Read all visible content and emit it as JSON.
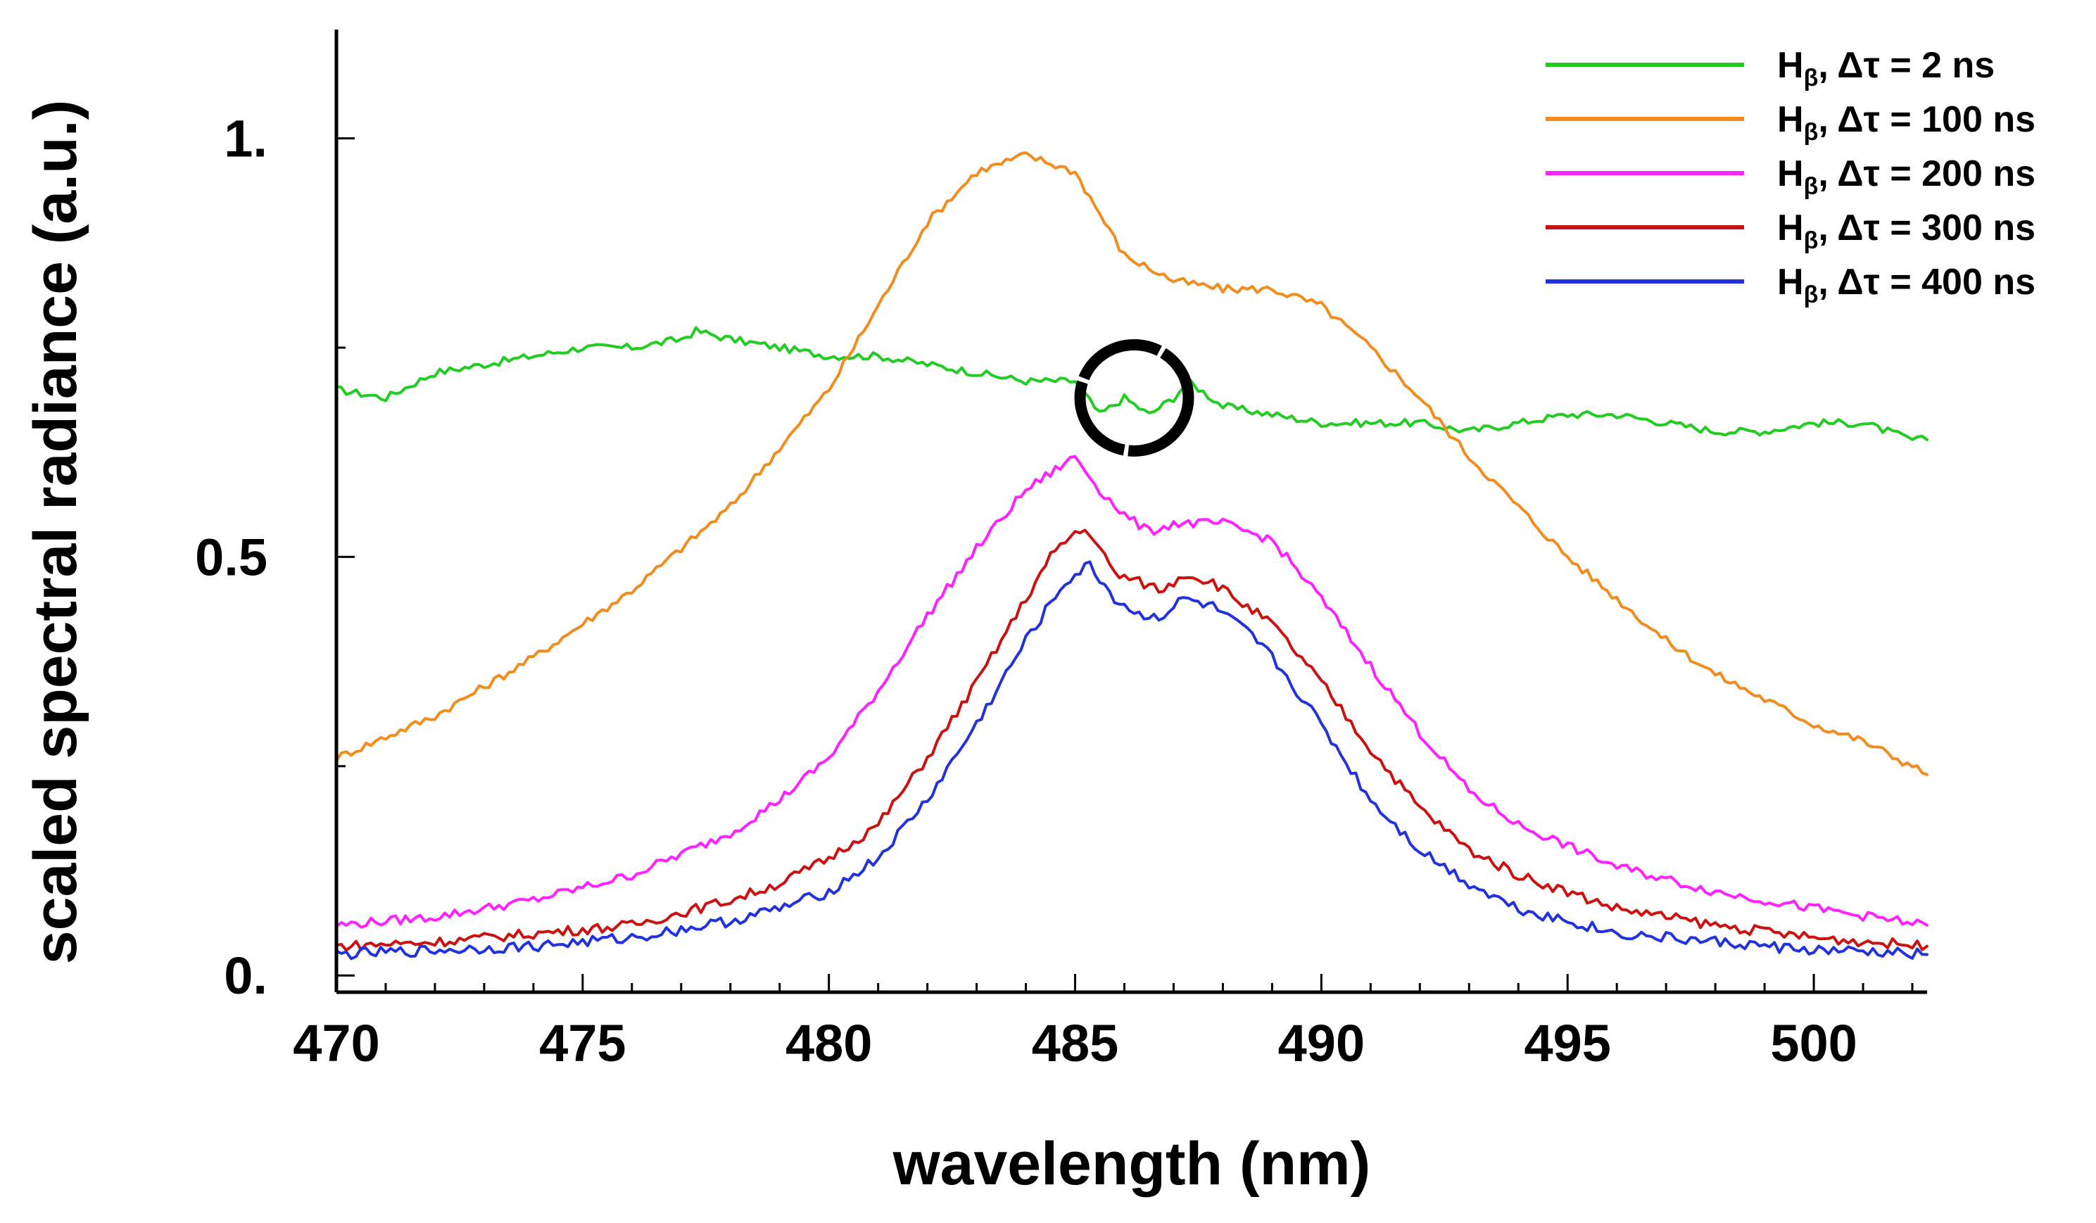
{
  "chart_data": {
    "type": "line",
    "title": "",
    "xlabel": "wavelength (nm)",
    "ylabel": "scaled spectral radiance (a.u.)",
    "xlim": [
      470,
      502.3
    ],
    "ylim": [
      -0.02,
      1.13
    ],
    "grid": false,
    "legend_position": "top-right",
    "x_ticks": [
      470,
      475,
      480,
      485,
      490,
      495,
      500
    ],
    "x_tick_labels": [
      "470",
      "475",
      "480",
      "485",
      "490",
      "495",
      "500"
    ],
    "x_minor_ticks": [
      471,
      472,
      473,
      474,
      476,
      477,
      478,
      479,
      481,
      482,
      483,
      484,
      486,
      487,
      488,
      489,
      491,
      492,
      493,
      494,
      496,
      497,
      498,
      499,
      501,
      502
    ],
    "y_ticks": [
      0,
      0.5,
      1.0
    ],
    "y_tick_labels": [
      "0.",
      "0.5",
      "1."
    ],
    "y_minor_ticks": [
      0.25,
      0.75
    ],
    "series": [
      {
        "name": "Hβ, Δτ = 2 ns",
        "legend_main": "H",
        "legend_sub": "β",
        "legend_rest": ", Δτ = 2 ns",
        "color": "#22cc22",
        "x": [
          470,
          471,
          472,
          473,
          474,
          475,
          476,
          477,
          477.3,
          478,
          479,
          480,
          481,
          482,
          483,
          484,
          485,
          485.5,
          486,
          486.5,
          487,
          487.3,
          488,
          489,
          490,
          491,
          492,
          493,
          494,
          495,
          496,
          497,
          498,
          499,
          500,
          501,
          502,
          502.3
        ],
        "values": [
          0.7,
          0.69,
          0.72,
          0.73,
          0.74,
          0.75,
          0.75,
          0.76,
          0.77,
          0.76,
          0.75,
          0.74,
          0.74,
          0.73,
          0.72,
          0.71,
          0.71,
          0.67,
          0.69,
          0.67,
          0.69,
          0.71,
          0.68,
          0.67,
          0.66,
          0.66,
          0.66,
          0.65,
          0.66,
          0.67,
          0.67,
          0.66,
          0.65,
          0.65,
          0.66,
          0.66,
          0.64,
          0.64
        ]
      },
      {
        "name": "Hβ, Δτ = 100 ns",
        "legend_main": "H",
        "legend_sub": "β",
        "legend_rest": ", Δτ = 100 ns",
        "color": "#f28c1e",
        "x": [
          470,
          472,
          474,
          476,
          478,
          480,
          481,
          482,
          483,
          484,
          484.5,
          485,
          485.5,
          486,
          487,
          488,
          489,
          490,
          491,
          492,
          493,
          494,
          495,
          496,
          497,
          498,
          499,
          500,
          501,
          502,
          502.3
        ],
        "values": [
          0.26,
          0.31,
          0.38,
          0.46,
          0.56,
          0.7,
          0.8,
          0.9,
          0.96,
          0.98,
          0.97,
          0.96,
          0.91,
          0.86,
          0.83,
          0.82,
          0.82,
          0.8,
          0.75,
          0.69,
          0.62,
          0.56,
          0.5,
          0.45,
          0.4,
          0.36,
          0.33,
          0.3,
          0.28,
          0.25,
          0.24
        ]
      },
      {
        "name": "Hβ, Δτ = 200 ns",
        "legend_main": "H",
        "legend_sub": "β",
        "legend_rest": ", Δτ = 200 ns",
        "color": "#ff22ff",
        "x": [
          470,
          472,
          474,
          476,
          478,
          479,
          480,
          481,
          482,
          483,
          484,
          485,
          485.5,
          486,
          486.5,
          487,
          487.5,
          488,
          488.5,
          489,
          490,
          491,
          492,
          493,
          494,
          496,
          498,
          500,
          502.3
        ],
        "values": [
          0.06,
          0.07,
          0.09,
          0.12,
          0.17,
          0.21,
          0.26,
          0.34,
          0.43,
          0.51,
          0.58,
          0.62,
          0.58,
          0.55,
          0.53,
          0.54,
          0.54,
          0.54,
          0.53,
          0.52,
          0.45,
          0.37,
          0.29,
          0.22,
          0.18,
          0.13,
          0.1,
          0.08,
          0.06
        ]
      },
      {
        "name": "Hβ, Δτ = 300 ns",
        "legend_main": "H",
        "legend_sub": "β",
        "legend_rest": ", Δτ = 300 ns",
        "color": "#cc1111",
        "x": [
          470,
          472,
          474,
          476,
          478,
          479,
          480,
          481,
          482,
          483,
          484,
          484.5,
          485,
          485.3,
          485.8,
          486.3,
          486.8,
          487.2,
          487.8,
          488.5,
          489,
          490,
          491,
          492,
          493,
          494,
          496,
          498,
          500,
          502.3
        ],
        "values": [
          0.035,
          0.04,
          0.05,
          0.06,
          0.09,
          0.11,
          0.14,
          0.18,
          0.26,
          0.35,
          0.45,
          0.5,
          0.53,
          0.53,
          0.48,
          0.47,
          0.46,
          0.48,
          0.47,
          0.44,
          0.42,
          0.35,
          0.27,
          0.2,
          0.15,
          0.12,
          0.08,
          0.06,
          0.045,
          0.035
        ]
      },
      {
        "name": "Hβ, Δτ = 400 ns",
        "legend_main": "H",
        "legend_sub": "β",
        "legend_rest": ", Δτ = 400 ns",
        "color": "#2233dd",
        "x": [
          470,
          472,
          474,
          476,
          478,
          479,
          480,
          481,
          482,
          483,
          484,
          484.8,
          485.3,
          485.8,
          486.3,
          486.8,
          487.2,
          487.8,
          488.5,
          489,
          490,
          491,
          492,
          493,
          494,
          496,
          498,
          500,
          502.3
        ],
        "values": [
          0.025,
          0.03,
          0.035,
          0.045,
          0.065,
          0.08,
          0.1,
          0.14,
          0.21,
          0.3,
          0.4,
          0.47,
          0.49,
          0.45,
          0.43,
          0.43,
          0.45,
          0.44,
          0.41,
          0.38,
          0.3,
          0.21,
          0.15,
          0.11,
          0.08,
          0.05,
          0.04,
          0.03,
          0.025
        ]
      }
    ],
    "annotation": {
      "type": "circle",
      "center_x": 486.2,
      "center_y": 0.69,
      "radius_x_data": 1.1,
      "note": "circled dip in 2 ns trace"
    }
  }
}
